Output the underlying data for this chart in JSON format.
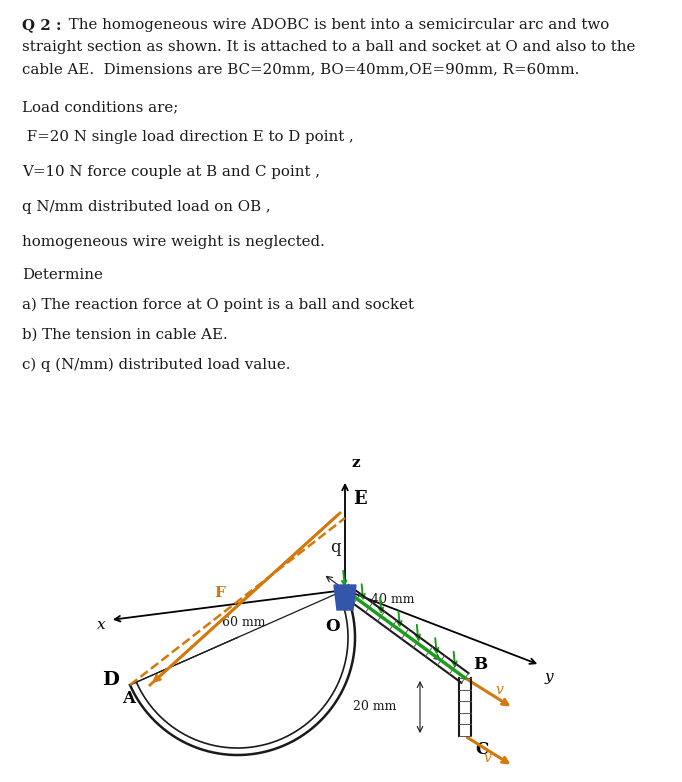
{
  "line1": "Q 2 :  The homogeneous wire ADOBC is bent into a semicircular arc and two",
  "line2": "straight section as shown. It is attached to a ball and socket at O and also to the",
  "line3": "cable AE.  Dimensions are BC=20mm, BO=40mm,OE=90mm, R=60mm.",
  "line4": "Load conditions are;",
  "line5": " F=20 N single load direction E to D point ,",
  "line6": "V=10 N force couple at B and C point ,",
  "line7": "q N/mm distributed load on OB ,",
  "line8": "homogeneous wire weight is neglected.",
  "line9": "Determine",
  "line10": "a) The reaction force at O point is a ball and socket",
  "line11": "b) The tension in cable AE.",
  "line12": "c) q (N/mm) distributed load value.",
  "bg_color": "#ffffff",
  "text_color": "#1a1a1a",
  "orange_color": "#d4780a",
  "green_color": "#1a9e1a",
  "blue_color": "#3355aa",
  "wire_color": "#1a1a1a",
  "gray_color": "#555555"
}
